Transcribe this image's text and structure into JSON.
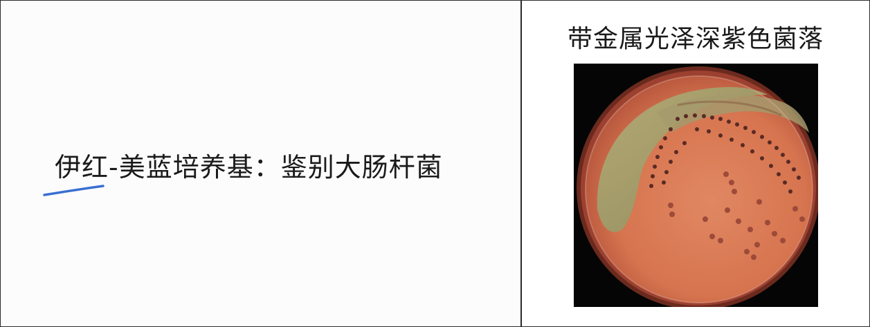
{
  "left_cell": {
    "text": "伊红-美蓝培养基：鉴别大肠杆菌"
  },
  "right_cell": {
    "caption": "带金属光泽深紫色菌落",
    "photo_subject": "petri-dish-culture"
  },
  "colors": {
    "border": "#2a2a2a",
    "pen_mark": "#3a6fd0",
    "agar": "#d9785a",
    "sheen": "#a8a06a"
  }
}
